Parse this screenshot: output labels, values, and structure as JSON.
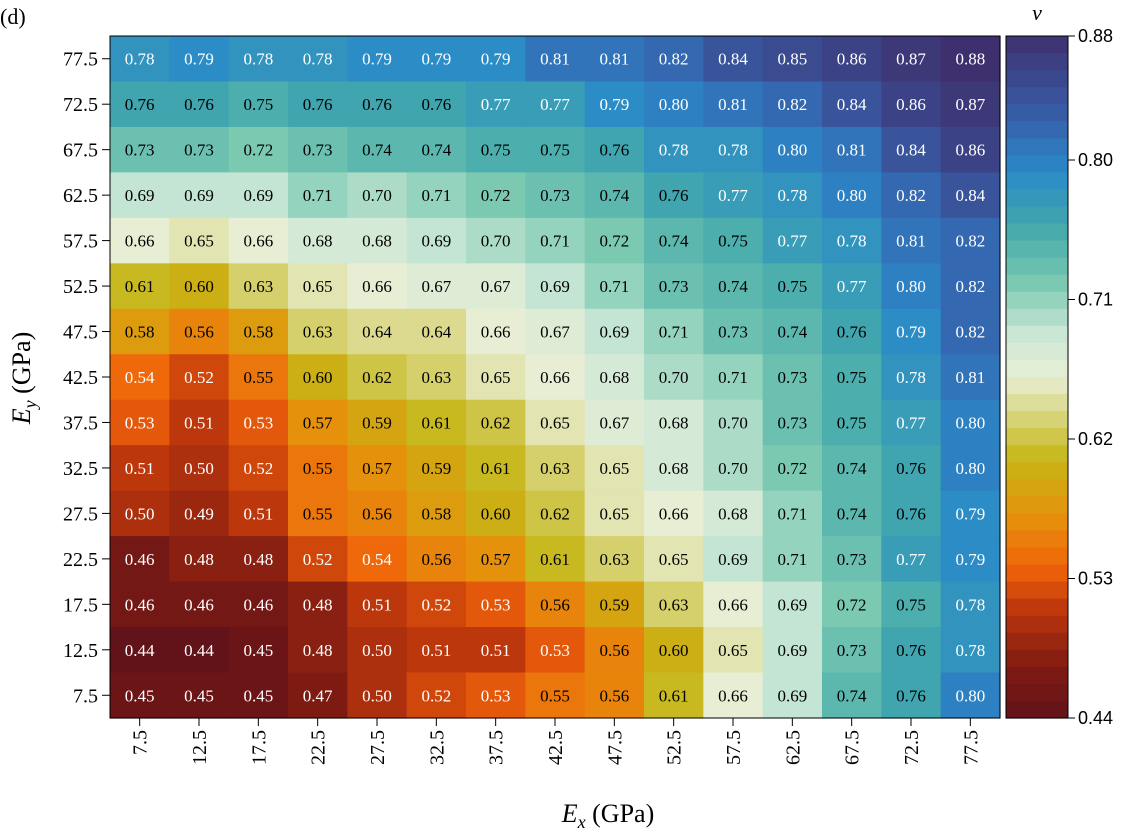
{
  "panel_label": "(d)",
  "chart_data": {
    "type": "heatmap",
    "xlabel_main": "E",
    "xlabel_sub": "x",
    "xlabel_unit": " (GPa)",
    "ylabel_main": "E",
    "ylabel_sub": "y",
    "ylabel_unit": " (GPa)",
    "x": [
      "7.5",
      "12.5",
      "17.5",
      "22.5",
      "27.5",
      "32.5",
      "37.5",
      "42.5",
      "47.5",
      "52.5",
      "57.5",
      "62.5",
      "67.5",
      "72.5",
      "77.5"
    ],
    "y": [
      "77.5",
      "72.5",
      "67.5",
      "62.5",
      "57.5",
      "52.5",
      "47.5",
      "42.5",
      "37.5",
      "32.5",
      "27.5",
      "22.5",
      "17.5",
      "12.5",
      "7.5"
    ],
    "values": [
      [
        "0.78",
        "0.79",
        "0.78",
        "0.78",
        "0.79",
        "0.79",
        "0.79",
        "0.81",
        "0.81",
        "0.82",
        "0.84",
        "0.85",
        "0.86",
        "0.87",
        "0.88"
      ],
      [
        "0.76",
        "0.76",
        "0.75",
        "0.76",
        "0.76",
        "0.76",
        "0.77",
        "0.77",
        "0.79",
        "0.80",
        "0.81",
        "0.82",
        "0.84",
        "0.86",
        "0.87"
      ],
      [
        "0.73",
        "0.73",
        "0.72",
        "0.73",
        "0.74",
        "0.74",
        "0.75",
        "0.75",
        "0.76",
        "0.78",
        "0.78",
        "0.80",
        "0.81",
        "0.84",
        "0.86"
      ],
      [
        "0.69",
        "0.69",
        "0.69",
        "0.71",
        "0.70",
        "0.71",
        "0.72",
        "0.73",
        "0.74",
        "0.76",
        "0.77",
        "0.78",
        "0.80",
        "0.82",
        "0.84"
      ],
      [
        "0.66",
        "0.65",
        "0.66",
        "0.68",
        "0.68",
        "0.69",
        "0.70",
        "0.71",
        "0.72",
        "0.74",
        "0.75",
        "0.77",
        "0.78",
        "0.81",
        "0.82"
      ],
      [
        "0.61",
        "0.60",
        "0.63",
        "0.65",
        "0.66",
        "0.67",
        "0.67",
        "0.69",
        "0.71",
        "0.73",
        "0.74",
        "0.75",
        "0.77",
        "0.80",
        "0.82"
      ],
      [
        "0.58",
        "0.56",
        "0.58",
        "0.63",
        "0.64",
        "0.64",
        "0.66",
        "0.67",
        "0.69",
        "0.71",
        "0.73",
        "0.74",
        "0.76",
        "0.79",
        "0.82"
      ],
      [
        "0.54",
        "0.52",
        "0.55",
        "0.60",
        "0.62",
        "0.63",
        "0.65",
        "0.66",
        "0.68",
        "0.70",
        "0.71",
        "0.73",
        "0.75",
        "0.78",
        "0.81"
      ],
      [
        "0.53",
        "0.51",
        "0.53",
        "0.57",
        "0.59",
        "0.61",
        "0.62",
        "0.65",
        "0.67",
        "0.68",
        "0.70",
        "0.73",
        "0.75",
        "0.77",
        "0.80"
      ],
      [
        "0.51",
        "0.50",
        "0.52",
        "0.55",
        "0.57",
        "0.59",
        "0.61",
        "0.63",
        "0.65",
        "0.68",
        "0.70",
        "0.72",
        "0.74",
        "0.76",
        "0.80"
      ],
      [
        "0.50",
        "0.49",
        "0.51",
        "0.55",
        "0.56",
        "0.58",
        "0.60",
        "0.62",
        "0.65",
        "0.66",
        "0.68",
        "0.71",
        "0.74",
        "0.76",
        "0.79"
      ],
      [
        "0.46",
        "0.48",
        "0.48",
        "0.52",
        "0.54",
        "0.56",
        "0.57",
        "0.61",
        "0.63",
        "0.65",
        "0.69",
        "0.71",
        "0.73",
        "0.77",
        "0.79"
      ],
      [
        "0.46",
        "0.46",
        "0.46",
        "0.48",
        "0.51",
        "0.52",
        "0.53",
        "0.56",
        "0.59",
        "0.63",
        "0.66",
        "0.69",
        "0.72",
        "0.75",
        "0.78"
      ],
      [
        "0.44",
        "0.44",
        "0.45",
        "0.48",
        "0.50",
        "0.51",
        "0.51",
        "0.53",
        "0.56",
        "0.60",
        "0.65",
        "0.69",
        "0.73",
        "0.76",
        "0.78"
      ],
      [
        "0.45",
        "0.45",
        "0.45",
        "0.47",
        "0.50",
        "0.52",
        "0.53",
        "0.55",
        "0.56",
        "0.61",
        "0.66",
        "0.69",
        "0.74",
        "0.76",
        "0.80"
      ]
    ],
    "colorbar": {
      "label": "ν",
      "ticks": [
        "0.88",
        "0.80",
        "0.71",
        "0.62",
        "0.53",
        "0.44"
      ],
      "range": [
        0.44,
        0.88
      ]
    }
  }
}
